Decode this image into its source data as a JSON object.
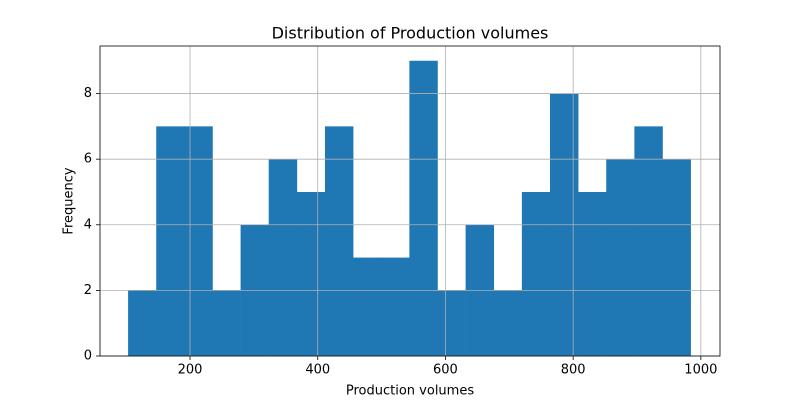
{
  "chart_data": {
    "type": "histogram",
    "title": "Distribution of Production volumes",
    "x_label": "Production volumes",
    "y_label": "Frequency",
    "bins": [
      103,
      147.05,
      191.1,
      235.15,
      279.2,
      323.25,
      367.3,
      411.35,
      455.4,
      499.45,
      543.5,
      587.55,
      631.6,
      675.65,
      719.7,
      763.75,
      807.8,
      851.85,
      895.9,
      939.95,
      984
    ],
    "values": [
      2,
      7,
      7,
      2,
      4,
      6,
      5,
      7,
      3,
      3,
      9,
      2,
      4,
      2,
      5,
      8,
      5,
      6,
      7,
      6
    ],
    "color": "#1f77b4",
    "xlim": [
      59,
      1030
    ],
    "xticks": [
      200,
      400,
      600,
      800,
      1000
    ],
    "ylim": [
      0,
      9.45
    ],
    "yticks": [
      0,
      2,
      4,
      6,
      8
    ],
    "grid": true
  }
}
